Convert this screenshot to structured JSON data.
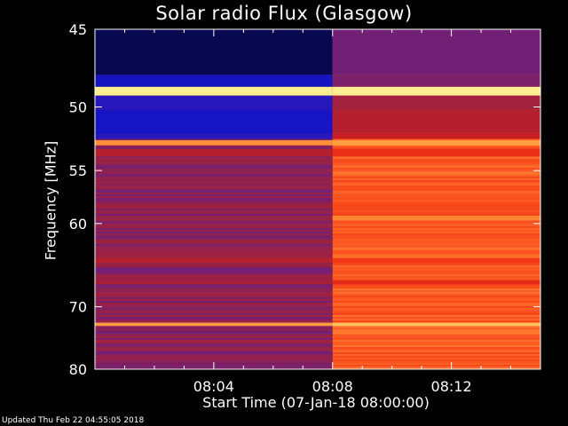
{
  "footer_text": "Updated Thu Feb 22 04:55:05 2018",
  "chart_data": {
    "type": "heatmap",
    "title": "Solar radio Flux (Glasgow)",
    "xlabel": "Start Time (07-Jan-18 08:00:00)",
    "ylabel": "Frequency [MHz]",
    "x_unit": "minutes after 08:00:00",
    "xlim": [
      0,
      15
    ],
    "ylim": [
      45,
      80
    ],
    "y_scale": "reciprocal",
    "y_ticks": [
      45,
      50,
      55,
      60,
      70,
      80
    ],
    "y_tick_labels": [
      "45",
      "50",
      "55",
      "60",
      "70",
      "80"
    ],
    "x_ticks": [
      4,
      8,
      12
    ],
    "x_tick_labels": [
      "08:04",
      "08:08",
      "08:12"
    ],
    "grid": false,
    "colormap": [
      "#000000",
      "#1414c8",
      "#5a1e96",
      "#962346",
      "#c81e1e",
      "#f03214",
      "#ff6428",
      "#ffb446",
      "#ffffaa"
    ],
    "transition_time_min": 8.0,
    "level_before": 0.35,
    "level_after": 0.72,
    "bands": [
      {
        "f_min": 45.0,
        "f_max": 47.8,
        "level_before": 0.05,
        "level_after": 0.3
      },
      {
        "f_min": 47.8,
        "f_max": 48.6,
        "level_before": 0.12,
        "level_after": 0.32
      },
      {
        "f_min": 48.6,
        "f_max": 49.2,
        "level_before": 0.97,
        "level_after": 0.97
      },
      {
        "f_min": 49.2,
        "f_max": 50.2,
        "level_before": 0.16,
        "level_after": 0.4
      },
      {
        "f_min": 50.2,
        "f_max": 52.0,
        "level_before": 0.13,
        "level_after": 0.45
      },
      {
        "f_min": 52.0,
        "f_max": 52.4,
        "level_before": 0.16,
        "level_after": 0.5
      },
      {
        "f_min": 52.5,
        "f_max": 52.9,
        "level_before": 0.82,
        "level_after": 0.84
      },
      {
        "f_min": 53.2,
        "f_max": 53.8,
        "level_before": 0.45,
        "level_after": 0.6
      },
      {
        "f_min": 59.2,
        "f_max": 59.7,
        "level_before": 0.38,
        "level_after": 0.8
      },
      {
        "f_min": 63.8,
        "f_max": 64.3,
        "level_before": 0.46,
        "level_after": 0.64
      },
      {
        "f_min": 66.5,
        "f_max": 67.0,
        "level_before": 0.42,
        "level_after": 0.58
      },
      {
        "f_min": 72.3,
        "f_max": 72.8,
        "level_before": 0.84,
        "level_after": 0.9
      },
      {
        "f_min": 73.5,
        "f_max": 74.0,
        "level_before": 0.3,
        "level_after": 0.78
      }
    ]
  }
}
